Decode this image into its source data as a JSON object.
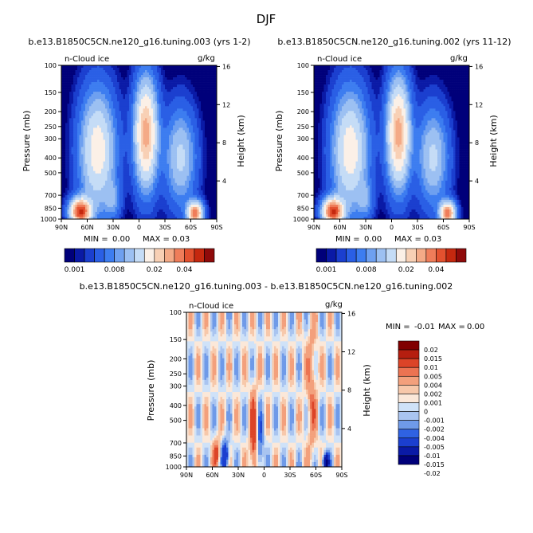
{
  "page_title": "DJF",
  "axes": {
    "ylabel": "Pressure (mb)",
    "ylabel_right": "Height (km)",
    "y_ticks": [
      "100",
      "150",
      "200",
      "250",
      "300",
      "400",
      "500",
      "700",
      "850",
      "1000"
    ],
    "y_ticks_right": [
      "16",
      "12",
      "8",
      "4"
    ],
    "x_ticks": [
      "90N",
      "60N",
      "30N",
      "0",
      "30S",
      "60S",
      "90S"
    ],
    "field_label": "n-Cloud ice",
    "units": "g/kg"
  },
  "colors": {
    "full": [
      "#00007a",
      "#0a1aa6",
      "#1b3fcf",
      "#2a5fe5",
      "#3d7df0",
      "#6ea0f0",
      "#9cc0f2",
      "#c5dcf6",
      "#fbf0e7",
      "#f8d0b5",
      "#f4aa87",
      "#ef7d5a",
      "#e3512f",
      "#c5280f",
      "#8f0a0a"
    ],
    "diff": [
      "#00007a",
      "#0a1aa6",
      "#1b3fcf",
      "#2f62e2",
      "#6f9ae8",
      "#a9c4f0",
      "#cfe2f8",
      "#fbe8d9",
      "#f7c8aa",
      "#f3a07c",
      "#ec7352",
      "#dc4428",
      "#b51e0f",
      "#800000"
    ]
  },
  "chart_data": [
    {
      "type": "heatmap",
      "title": "b.e13.B1850C5CN.ne120_g16.tuning.003 (yrs 1-2)",
      "x_range": [
        "90N",
        "90S"
      ],
      "y_range_mb": [
        100,
        1000
      ],
      "min_label": "MIN =",
      "min_value": "0.00",
      "max_label": "MAX =",
      "max_value": "0.03",
      "colorbar_labels": [
        "0.001",
        "0.008",
        "0.02",
        "0.04"
      ]
    },
    {
      "type": "heatmap",
      "title": "b.e13.B1850C5CN.ne120_g16.tuning.002 (yrs 11-12)",
      "x_range": [
        "90N",
        "90S"
      ],
      "y_range_mb": [
        100,
        1000
      ],
      "min_label": "MIN =",
      "min_value": "0.00",
      "max_label": "MAX =",
      "max_value": "0.03",
      "colorbar_labels": [
        "0.001",
        "0.008",
        "0.02",
        "0.04"
      ]
    },
    {
      "type": "heatmap",
      "title": "b.e13.B1850C5CN.ne120_g16.tuning.003 - b.e13.B1850C5CN.ne120_g16.tuning.002",
      "x_range": [
        "90N",
        "90S"
      ],
      "y_range_mb": [
        100,
        1000
      ],
      "min_label": "MIN =",
      "min_value": "-0.01",
      "max_label": "MAX =",
      "max_value": "0.00",
      "colorbar_labels": [
        "0.02",
        "0.015",
        "0.01",
        "0.005",
        "0.004",
        "0.002",
        "0.001",
        "0",
        "-0.001",
        "-0.002",
        "-0.004",
        "-0.005",
        "-0.01",
        "-0.015",
        "-0.02"
      ]
    }
  ]
}
